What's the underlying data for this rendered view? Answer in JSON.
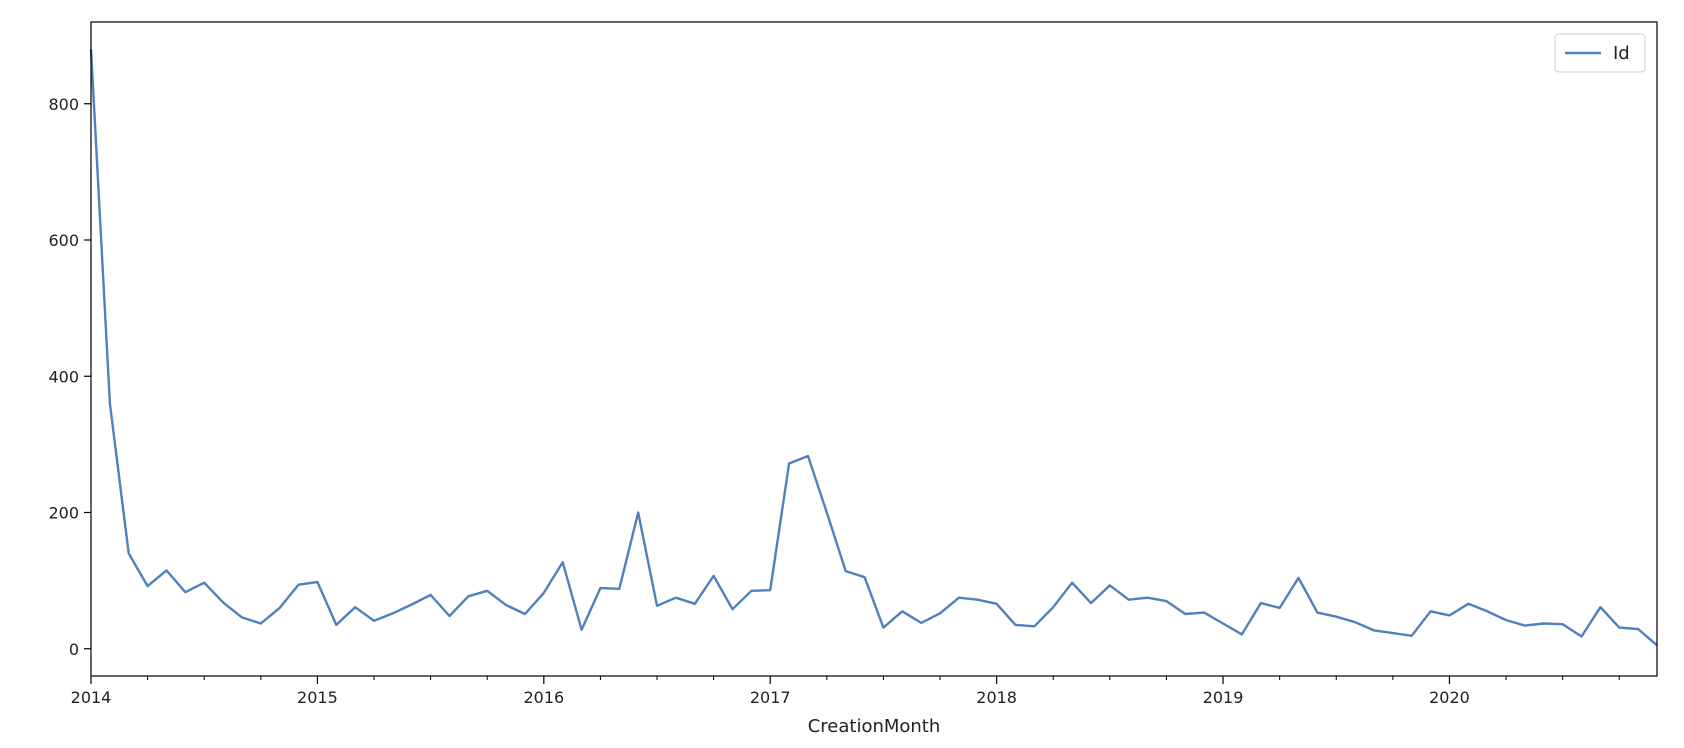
{
  "chart_data": {
    "type": "line",
    "title": "",
    "xlabel": "CreationMonth",
    "ylabel": "",
    "x_ticks": [
      "2014",
      "2015",
      "2016",
      "2017",
      "2018",
      "2019",
      "2020"
    ],
    "y_ticks": [
      "0",
      "200",
      "400",
      "600",
      "800"
    ],
    "ylim": [
      -40,
      920
    ],
    "xlim": [
      "2014-01",
      "2020-12"
    ],
    "grid": false,
    "legend_placement": "top-right",
    "colors": {
      "line": "#4f81bd"
    },
    "series": [
      {
        "name": "Id",
        "x": [
          "2014-01",
          "2014-02",
          "2014-03",
          "2014-04",
          "2014-05",
          "2014-06",
          "2014-07",
          "2014-08",
          "2014-09",
          "2014-10",
          "2014-11",
          "2014-12",
          "2015-01",
          "2015-02",
          "2015-03",
          "2015-04",
          "2015-05",
          "2015-06",
          "2015-07",
          "2015-08",
          "2015-09",
          "2015-10",
          "2015-11",
          "2015-12",
          "2016-01",
          "2016-02",
          "2016-03",
          "2016-04",
          "2016-05",
          "2016-06",
          "2016-07",
          "2016-08",
          "2016-09",
          "2016-10",
          "2016-11",
          "2016-12",
          "2017-01",
          "2017-02",
          "2017-03",
          "2017-04",
          "2017-05",
          "2017-06",
          "2017-07",
          "2017-08",
          "2017-09",
          "2017-10",
          "2017-11",
          "2017-12",
          "2018-01",
          "2018-02",
          "2018-03",
          "2018-04",
          "2018-05",
          "2018-06",
          "2018-07",
          "2018-08",
          "2018-09",
          "2018-10",
          "2018-11",
          "2018-12",
          "2019-01",
          "2019-02",
          "2019-03",
          "2019-04",
          "2019-05",
          "2019-06",
          "2019-07",
          "2019-08",
          "2019-09",
          "2019-10",
          "2019-11",
          "2019-12",
          "2020-01",
          "2020-02",
          "2020-03",
          "2020-04",
          "2020-05",
          "2020-06",
          "2020-07",
          "2020-08",
          "2020-09",
          "2020-10",
          "2020-11",
          "2020-12"
        ],
        "values": [
          880,
          360,
          140,
          92,
          115,
          83,
          97,
          68,
          46,
          37,
          60,
          94,
          98,
          35,
          61,
          41,
          52,
          65,
          79,
          48,
          77,
          85,
          64,
          51,
          82,
          127,
          28,
          89,
          88,
          200,
          63,
          75,
          66,
          107,
          58,
          85,
          86,
          272,
          283,
          200,
          114,
          105,
          31,
          55,
          38,
          52,
          75,
          72,
          66,
          35,
          33,
          61,
          97,
          67,
          93,
          72,
          75,
          70,
          51,
          53,
          37,
          21,
          67,
          60,
          104,
          53,
          47,
          39,
          27,
          23,
          19,
          55,
          49,
          66,
          55,
          42,
          34,
          37,
          36,
          18,
          61,
          31,
          29,
          5
        ]
      }
    ]
  }
}
